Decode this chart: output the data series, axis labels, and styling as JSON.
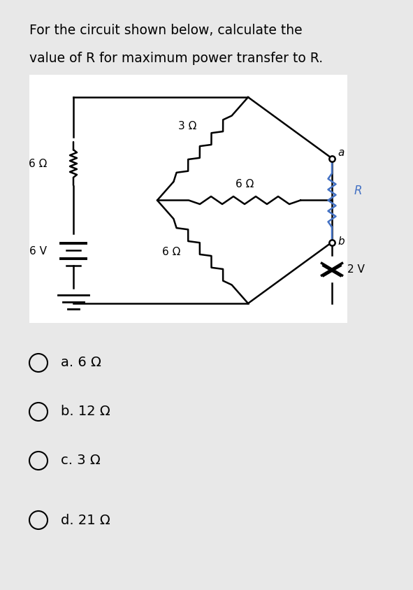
{
  "title_line1": "For the circuit shown below, calculate the",
  "title_line2": "value of R for maximum power transfer to R.",
  "bg_color": "#e8e8e8",
  "circuit_bg": "#ffffff",
  "options": [
    "a. 6 Ω",
    "b. 12 Ω",
    "c. 3 Ω",
    "d. 21 Ω"
  ],
  "title_fontsize": 13.5,
  "option_fontsize": 14
}
